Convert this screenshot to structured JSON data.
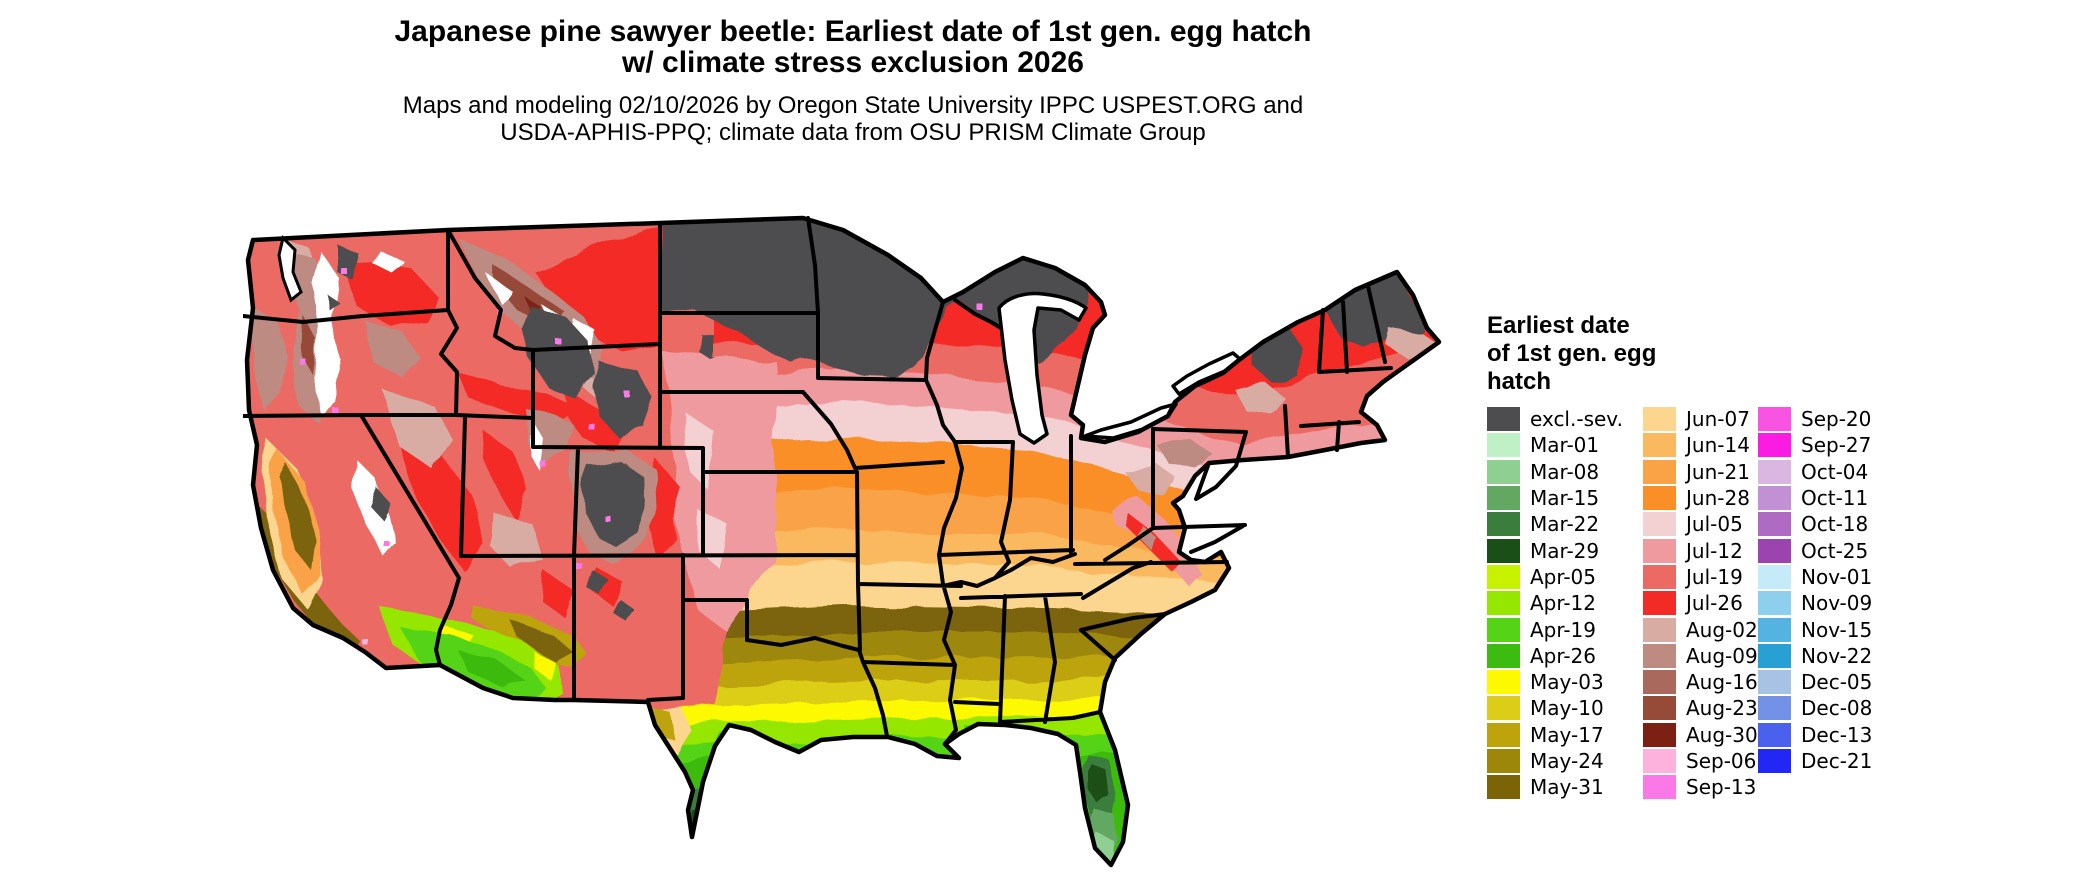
{
  "title": {
    "line1": "Japanese pine sawyer beetle: Earliest date of 1st gen. egg hatch",
    "line2": "w/ climate stress exclusion 2026"
  },
  "subtitle": {
    "line1": "Maps and modeling 02/10/2026 by Oregon State University IPPC USPEST.ORG and",
    "line2": "USDA-APHIS-PPQ; climate data from OSU PRISM Climate Group"
  },
  "legend": {
    "title_lines": [
      "Earliest date",
      "of 1st gen. egg",
      "hatch"
    ],
    "columns": [
      [
        {
          "label": "excl.-sev.",
          "color": "#4d4d4f"
        },
        {
          "label": "Mar-01",
          "color": "#bff0c6"
        },
        {
          "label": "Mar-08",
          "color": "#8fd092"
        },
        {
          "label": "Mar-15",
          "color": "#62a862"
        },
        {
          "label": "Mar-22",
          "color": "#3a7d3c"
        },
        {
          "label": "Mar-29",
          "color": "#1a5018"
        },
        {
          "label": "Apr-05",
          "color": "#c6f200"
        },
        {
          "label": "Apr-12",
          "color": "#96e700"
        },
        {
          "label": "Apr-19",
          "color": "#55d317"
        },
        {
          "label": "Apr-26",
          "color": "#3cbb11"
        },
        {
          "label": "May-03",
          "color": "#fdf900"
        },
        {
          "label": "May-10",
          "color": "#dccd18"
        },
        {
          "label": "May-17",
          "color": "#bda40d"
        },
        {
          "label": "May-24",
          "color": "#9d870b"
        },
        {
          "label": "May-31",
          "color": "#7b6307"
        }
      ],
      [
        {
          "label": "Jun-07",
          "color": "#fcd68e"
        },
        {
          "label": "Jun-14",
          "color": "#fbb95f"
        },
        {
          "label": "Jun-21",
          "color": "#faa246"
        },
        {
          "label": "Jun-28",
          "color": "#f98f26"
        },
        {
          "label": "Jul-05",
          "color": "#f3d0d2"
        },
        {
          "label": "Jul-12",
          "color": "#ef9a9e"
        },
        {
          "label": "Jul-19",
          "color": "#eb6a64"
        },
        {
          "label": "Jul-26",
          "color": "#f32b26"
        },
        {
          "label": "Aug-02",
          "color": "#d8aba3"
        },
        {
          "label": "Aug-09",
          "color": "#bd8b81"
        },
        {
          "label": "Aug-16",
          "color": "#a9695c"
        },
        {
          "label": "Aug-23",
          "color": "#964a38"
        },
        {
          "label": "Aug-30",
          "color": "#7c2013"
        },
        {
          "label": "Sep-06",
          "color": "#fcb2dc"
        },
        {
          "label": "Sep-13",
          "color": "#fb79e6"
        }
      ],
      [
        {
          "label": "Sep-20",
          "color": "#f854e1"
        },
        {
          "label": "Sep-27",
          "color": "#fb1ce4"
        },
        {
          "label": "Oct-04",
          "color": "#dab7e1"
        },
        {
          "label": "Oct-11",
          "color": "#c190d5"
        },
        {
          "label": "Oct-18",
          "color": "#af6bc3"
        },
        {
          "label": "Oct-25",
          "color": "#9b44af"
        },
        {
          "label": "Nov-01",
          "color": "#c5ebf9"
        },
        {
          "label": "Nov-09",
          "color": "#8dcfed"
        },
        {
          "label": "Nov-15",
          "color": "#54b3e1"
        },
        {
          "label": "Nov-22",
          "color": "#29a0d3"
        },
        {
          "label": "Dec-05",
          "color": "#a7c3e3"
        },
        {
          "label": "Dec-08",
          "color": "#7391e7"
        },
        {
          "label": "Dec-13",
          "color": "#4961ed"
        },
        {
          "label": "Dec-21",
          "color": "#2327f3"
        }
      ]
    ]
  },
  "map": {
    "background": "#ffffff",
    "border_color": "#000000"
  }
}
